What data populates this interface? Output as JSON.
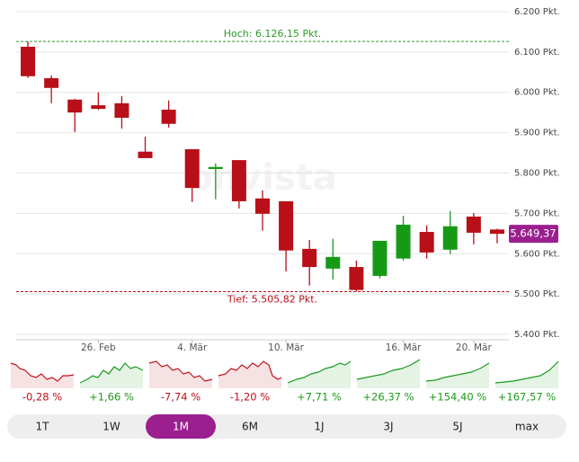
{
  "chart_data": {
    "type": "candlestick",
    "categories": [
      null,
      null,
      null,
      "26. Feb",
      null,
      null,
      null,
      "4. Mär",
      null,
      null,
      null,
      "10. Mär",
      null,
      null,
      null,
      null,
      "16. Mär",
      null,
      null,
      "20. Mär",
      null
    ],
    "open": [
      6113,
      6035,
      5982,
      5968,
      5973,
      5853,
      5957,
      5859,
      5810,
      5832,
      5737,
      5730,
      5612,
      5563,
      5567,
      5545,
      5588,
      5654,
      5610,
      5692,
      5660
    ],
    "high": [
      6126,
      6042,
      5984,
      6000,
      5991,
      5890,
      5980,
      5859,
      5824,
      5832,
      5757,
      5730,
      5634,
      5637,
      5583,
      5632,
      5694,
      5670,
      5706,
      5701,
      5662
    ],
    "low": [
      6036,
      5973,
      5902,
      5957,
      5910,
      5837,
      5913,
      5728,
      5735,
      5712,
      5657,
      5556,
      5521,
      5536,
      5506,
      5539,
      5583,
      5588,
      5599,
      5623,
      5626
    ],
    "close": [
      6040,
      6011,
      5950,
      5959,
      5937,
      5837,
      5922,
      5763,
      5815,
      5730,
      5699,
      5608,
      5567,
      5592,
      5510,
      5632,
      5672,
      5603,
      5668,
      5652,
      5649.37
    ],
    "up_color": "#169a16",
    "down_color": "#b80f18",
    "ylim": [
      5380,
      6220
    ],
    "yticks": [
      {
        "value": 5400,
        "label": "5.400 Pkt."
      },
      {
        "value": 5500,
        "label": "5.500 Pkt."
      },
      {
        "value": 5600,
        "label": "5.600 Pkt."
      },
      {
        "value": 5700,
        "label": "5.700 Pkt."
      },
      {
        "value": 5800,
        "label": "5.800 Pkt."
      },
      {
        "value": 5900,
        "label": "5.900 Pkt."
      },
      {
        "value": 6000,
        "label": "6.000 Pkt."
      },
      {
        "value": 6100,
        "label": "6.100 Pkt."
      },
      {
        "value": 6200,
        "label": "6.200 Pkt."
      }
    ],
    "grid": true,
    "high_line": {
      "value": 6126.15,
      "label": "Hoch: 6.126,15 Pkt.",
      "color": "#2a9a2a"
    },
    "low_line": {
      "value": 5505.82,
      "label": "Tief: 5.505,82 Pkt.",
      "color": "#b80f18"
    },
    "last": {
      "value": 5649.37,
      "label": "5.649,37",
      "color": "#9b1f8f"
    },
    "watermark": "onvista"
  },
  "periods": [
    {
      "label": "1T",
      "change": -0.28,
      "change_label": "-0,28 %",
      "color": "#c0101a"
    },
    {
      "label": "1W",
      "change": 1.66,
      "change_label": "+1,66 %",
      "color": "#1e9a1e"
    },
    {
      "label": "1M",
      "change": -7.74,
      "change_label": "-7,74 %",
      "color": "#c0101a"
    },
    {
      "label": "6M",
      "change": -1.2,
      "change_label": "-1,20 %",
      "color": "#c0101a"
    },
    {
      "label": "1J",
      "change": 7.71,
      "change_label": "+7,71 %",
      "color": "#1e9a1e"
    },
    {
      "label": "3J",
      "change": 26.37,
      "change_label": "+26,37 %",
      "color": "#1e9a1e"
    },
    {
      "label": "5J",
      "change": 154.4,
      "change_label": "+154,40 %",
      "color": "#1e9a1e"
    },
    {
      "label": "max",
      "change": 167.57,
      "change_label": "+167,57 %",
      "color": "#1e9a1e"
    }
  ],
  "selected_period": 2
}
